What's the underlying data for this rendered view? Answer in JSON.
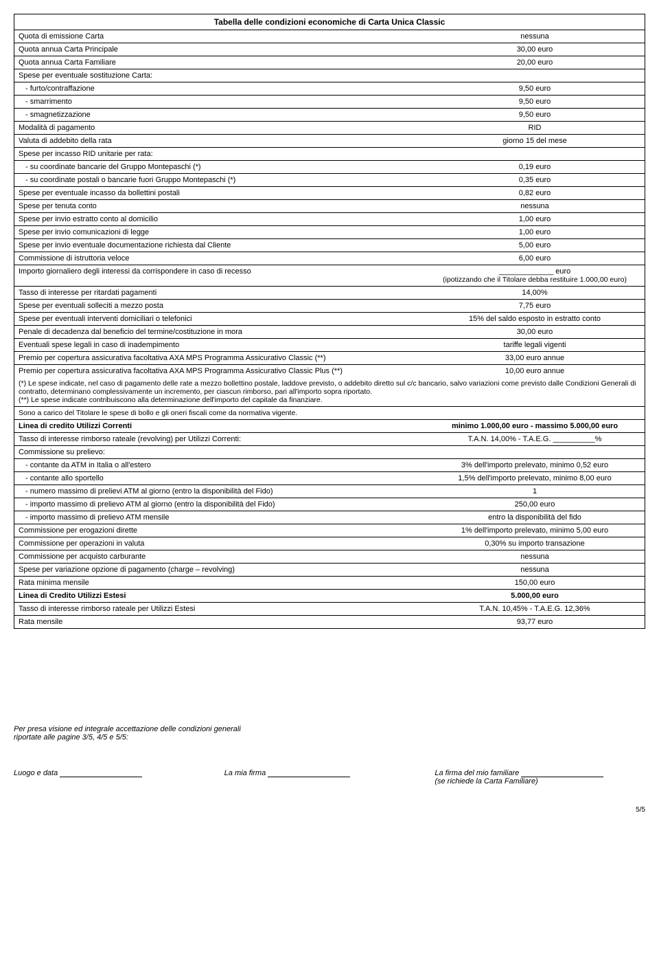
{
  "title": "Tabella delle condizioni economiche di Carta Unica Classic",
  "rows": [
    {
      "l": "Quota di emissione Carta",
      "r": "nessuna"
    },
    {
      "l": "Quota annua Carta Principale",
      "r": "30,00 euro"
    },
    {
      "l": "Quota annua Carta Familiare",
      "r": "20,00 euro"
    },
    {
      "l": "Spese per eventuale sostituzione Carta:",
      "r": ""
    },
    {
      "l": "-  furto/contraffazione",
      "r": "9,50 euro",
      "indent": true
    },
    {
      "l": "-  smarrimento",
      "r": "9,50 euro",
      "indent": true
    },
    {
      "l": "-  smagnetizzazione",
      "r": "9,50 euro",
      "indent": true
    },
    {
      "l": "Modalità di pagamento",
      "r": "RID"
    },
    {
      "l": "Valuta di addebito della rata",
      "r": "giorno 15 del mese"
    },
    {
      "l": "Spese per incasso RID unitarie per rata:",
      "r": ""
    },
    {
      "l": "-  su coordinate bancarie del Gruppo Montepaschi (*)",
      "r": "0,19 euro",
      "indent": true
    },
    {
      "l": "-  su coordinate postali o bancarie fuori Gruppo Montepaschi (*)",
      "r": "0,35 euro",
      "indent": true
    },
    {
      "l": "Spese per eventuale incasso da bollettini postali",
      "r": "0,82 euro"
    },
    {
      "l": "Spese per tenuta conto",
      "r": "nessuna"
    },
    {
      "l": "Spese per invio estratto conto al domicilio",
      "r": "1,00 euro"
    },
    {
      "l": "Spese per invio comunicazioni di legge",
      "r": "1,00 euro"
    },
    {
      "l": "Spese per invio eventuale documentazione richiesta dal Cliente",
      "r": "5,00 euro"
    },
    {
      "l": "Commissione di istruttoria veloce",
      "r": "6,00 euro"
    },
    {
      "l": "Importo giornaliero degli interessi da corrispondere in caso di recesso",
      "r": "_____________ euro",
      "r2": "(ipotizzando che il Titolare debba restituire 1.000,00 euro)",
      "twoline": true
    },
    {
      "l": "Tasso di interesse per ritardati pagamenti",
      "r": "14,00%"
    },
    {
      "l": "Spese per eventuali solleciti a mezzo posta",
      "r": "7,75 euro"
    },
    {
      "l": "Spese per eventuali interventi domiciliari o telefonici",
      "r": "15% del saldo esposto in estratto conto"
    },
    {
      "l": "Penale di decadenza dal beneficio del termine/costituzione in mora",
      "r": "30,00 euro"
    },
    {
      "l": "Eventuali spese legali in caso di inadempimento",
      "r": "tariffe legali vigenti"
    },
    {
      "l": "Premio per copertura assicurativa facoltativa AXA MPS Programma Assicurativo Classic (**)",
      "r": "33,00 euro annue"
    },
    {
      "l": "Premio per copertura assicurativa facoltativa AXA MPS Programma Assicurativo Classic Plus (**)",
      "r": "10,00 euro annue"
    }
  ],
  "note1": "(*) Le spese indicate, nel caso di pagamento delle rate a mezzo bollettino postale, laddove previsto, o addebito diretto sul c/c bancario, salvo variazioni come previsto dalle Condizioni Generali di contratto, determinano complessivamente un incremento, per ciascun rimborso, pari all'importo sopra riportato.",
  "note2": "(**) Le spese indicate contribuiscono alla determinazione dell'importo del capitale da finanziare.",
  "note3": "Sono a carico del Titolare le spese di bollo e gli oneri fiscali come da normativa vigente.",
  "rows2": [
    {
      "l": "Linea di credito Utilizzi Correnti",
      "r": "minimo 1.000,00 euro - massimo 5.000,00 euro",
      "bold": true
    },
    {
      "l": "Tasso di interesse rimborso rateale (revolving) per Utilizzi Correnti:",
      "r": "T.A.N. 14,00% - T.A.E.G. __________%"
    },
    {
      "l": "Commissione su prelievo:",
      "r": ""
    },
    {
      "l": "-  contante da ATM in Italia o all'estero",
      "r": "3% dell'importo prelevato, minimo 0,52 euro",
      "indent": true
    },
    {
      "l": "-  contante allo sportello",
      "r": "1,5% dell'importo prelevato, minimo 8,00 euro",
      "indent": true
    },
    {
      "l": "-  numero massimo di prelievi ATM al giorno (entro la disponibilità del Fido)",
      "r": "1",
      "indent": true
    },
    {
      "l": "-  importo massimo di prelievo ATM al giorno (entro la disponibilità del Fido)",
      "r": "250,00 euro",
      "indent": true
    },
    {
      "l": "-  importo massimo di prelievo ATM mensile",
      "r": "entro la disponibilità del fido",
      "indent": true
    },
    {
      "l": "Commissione per erogazioni dirette",
      "r": "1% dell'importo prelevato, minimo 5,00 euro"
    },
    {
      "l": "Commissione per operazioni in valuta",
      "r": "0,30% su importo transazione"
    },
    {
      "l": "Commissione per acquisto carburante",
      "r": "nessuna"
    },
    {
      "l": "Spese per variazione opzione di pagamento (charge – revolving)",
      "r": "nessuna"
    },
    {
      "l": "Rata minima mensile",
      "r": "150,00 euro"
    },
    {
      "l": "Linea di Credito Utilizzi Estesi",
      "r": "5.000,00 euro",
      "bold": true
    },
    {
      "l": "Tasso di interesse rimborso rateale per Utilizzi Estesi",
      "r": "T.A.N. 10,45% - T.A.E.G. 12,36%"
    },
    {
      "l": "Rata mensile",
      "r": "93,77 euro"
    }
  ],
  "accept": {
    "line1": "Per presa visione ed integrale accettazione delle condizioni generali",
    "line2": "riportate alle pagine 3/5, 4/5 e 5/5:"
  },
  "sig": {
    "luogo": "Luogo e data",
    "firma": "La mia firma",
    "familiare": "La firma del mio familiare",
    "familiare2": "(se richiede la Carta Familiare)"
  },
  "page": "5/5"
}
